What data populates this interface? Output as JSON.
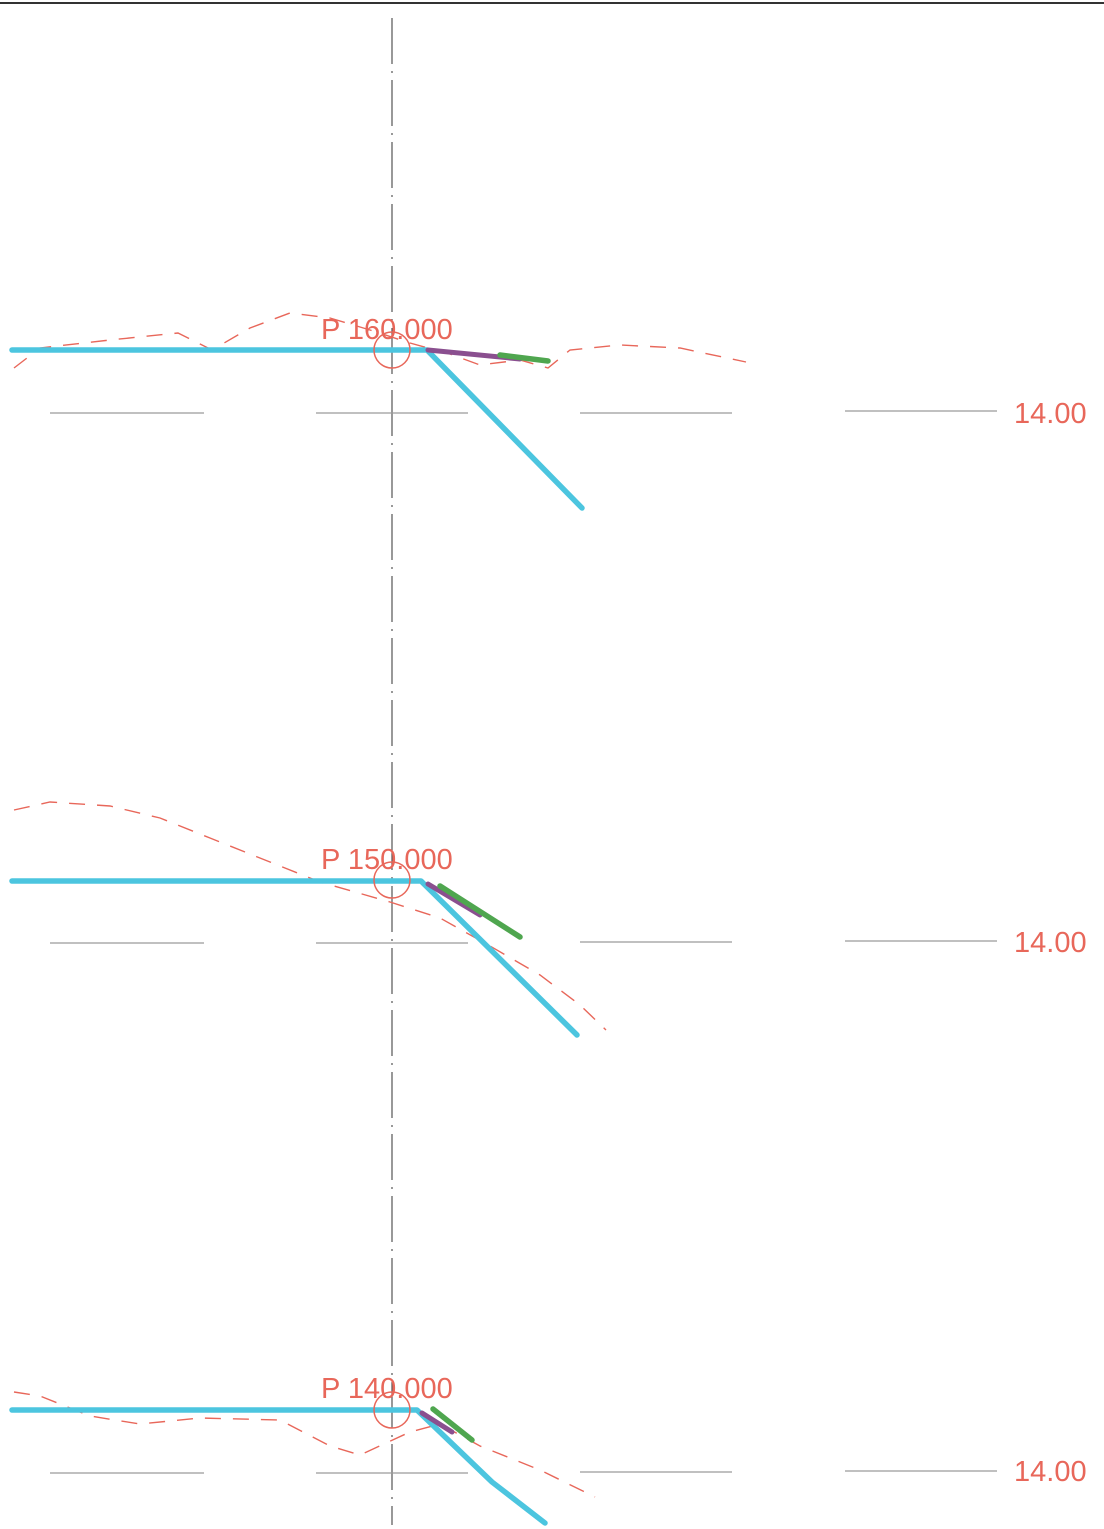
{
  "colors": {
    "background": "#ffffff",
    "border": "#333333",
    "centerline": "#555555",
    "reference_line": "#9a9a9a",
    "design_profile": "#4cc5df",
    "existing_ground": "#e8675a",
    "layer_purple": "#8a4f8f",
    "layer_green": "#4fa64f",
    "text": "#e8675a"
  },
  "sections": [
    {
      "station_label": "P 160.000",
      "elevation_label": "14.00"
    },
    {
      "station_label": "P 150.000",
      "elevation_label": "14.00"
    },
    {
      "station_label": "P 140.000",
      "elevation_label": "14.00"
    }
  ]
}
